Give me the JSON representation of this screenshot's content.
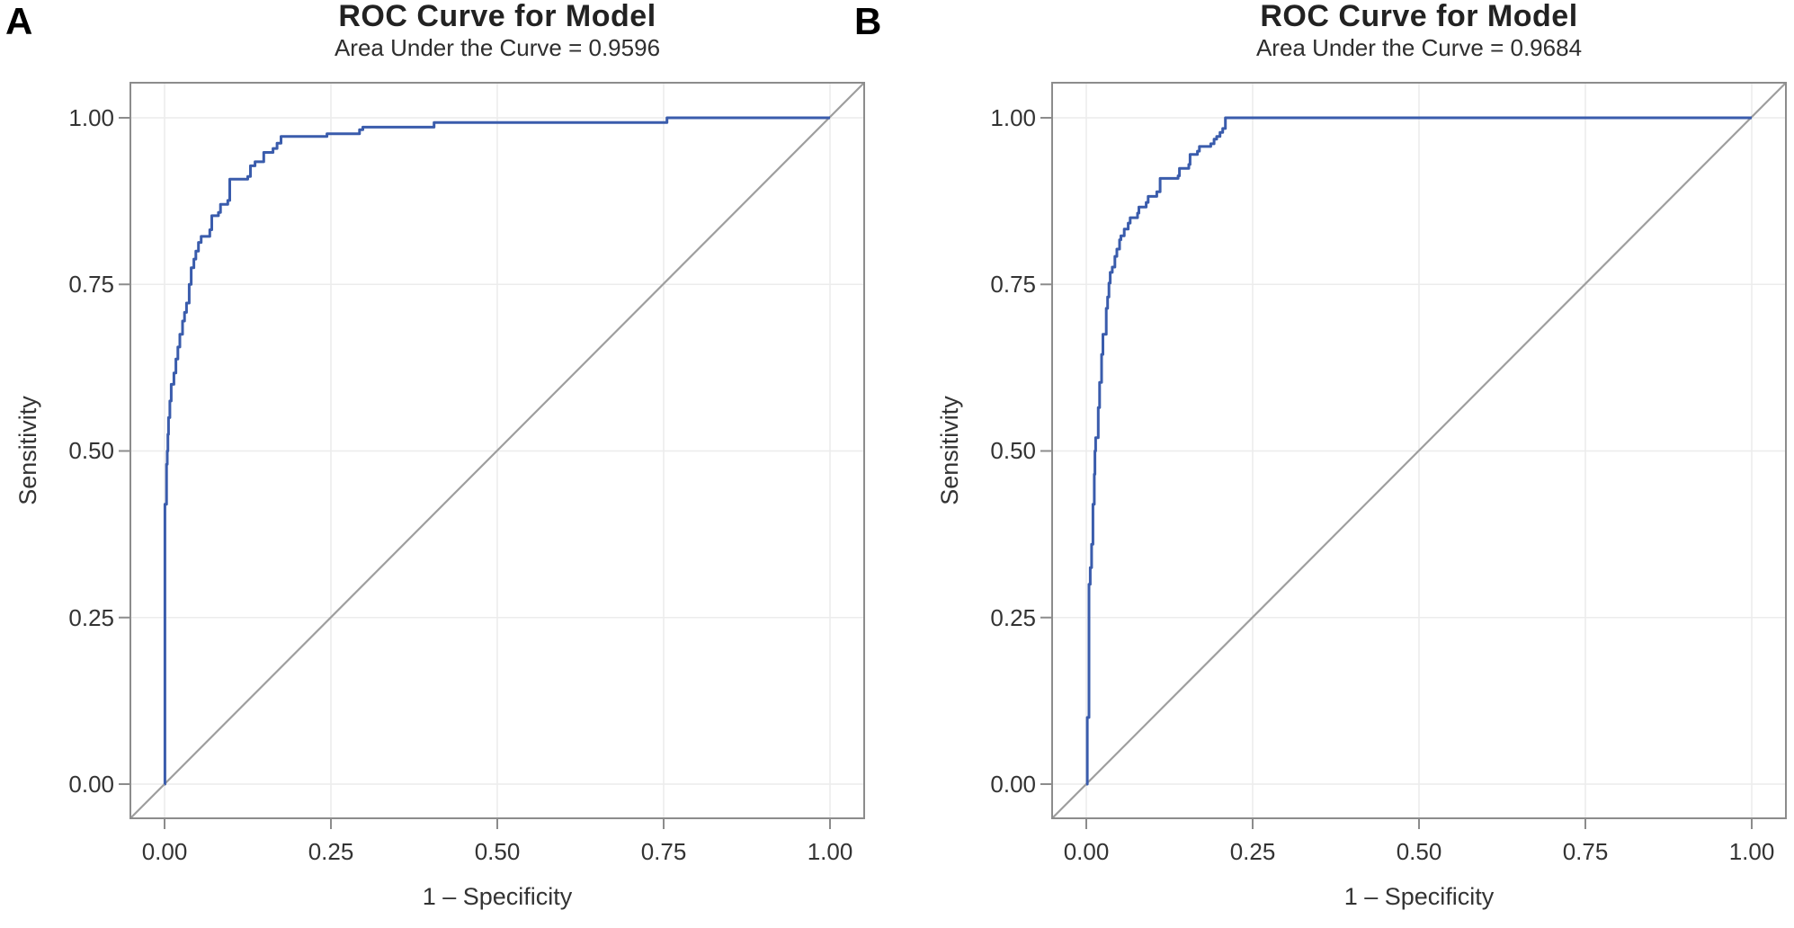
{
  "style": {
    "curve_color": "#3A5CAC",
    "diagonal_color": "#9E9E9E",
    "grid_color": "#ECECEC",
    "frame_color": "#8C8C8C",
    "tick_color": "#8C8C8C",
    "text_color": "#333333",
    "background": "#FFFFFF"
  },
  "chart_data": [
    {
      "type": "line",
      "panel_label": "A",
      "title": "ROC Curve for Model",
      "subtitle": "Area Under the Curve = 0.9596",
      "auc": 0.9596,
      "xlabel": "1 – Specificity",
      "ylabel": "Sensitivity",
      "xlim": [
        0.0,
        1.0
      ],
      "ylim": [
        0.0,
        1.0
      ],
      "grid": true,
      "legend": "none",
      "reference_line": "chance diagonal from (0,0) to (1,1)",
      "xticks": {
        "values": [
          0,
          0.25,
          0.5,
          0.75,
          1
        ],
        "labels": [
          "0.00",
          "0.25",
          "0.50",
          "0.75",
          "1.00"
        ]
      },
      "yticks": {
        "values": [
          0,
          0.25,
          0.5,
          0.75,
          1
        ],
        "labels": [
          "0.00",
          "0.25",
          "0.50",
          "0.75",
          "1.00"
        ]
      },
      "series": [
        {
          "name": "ROC curve",
          "points": [
            [
              0,
              0
            ],
            [
              0.0005,
              0
            ],
            [
              0.0005,
              0.42
            ],
            [
              0.003,
              0.445
            ],
            [
              0.003,
              0.48
            ],
            [
              0.004,
              0.5
            ],
            [
              0.005,
              0.525
            ],
            [
              0.006,
              0.55
            ],
            [
              0.008,
              0.575
            ],
            [
              0.01,
              0.6
            ],
            [
              0.014,
              0.617
            ],
            [
              0.017,
              0.638
            ],
            [
              0.02,
              0.656
            ],
            [
              0.023,
              0.675
            ],
            [
              0.027,
              0.695
            ],
            [
              0.03,
              0.708
            ],
            [
              0.033,
              0.722
            ],
            [
              0.037,
              0.75
            ],
            [
              0.04,
              0.775
            ],
            [
              0.044,
              0.788
            ],
            [
              0.047,
              0.8
            ],
            [
              0.051,
              0.813
            ],
            [
              0.055,
              0.822
            ],
            [
              0.068,
              0.832
            ],
            [
              0.071,
              0.853
            ],
            [
              0.081,
              0.858
            ],
            [
              0.084,
              0.87
            ],
            [
              0.095,
              0.876
            ],
            [
              0.098,
              0.908
            ],
            [
              0.125,
              0.912
            ],
            [
              0.129,
              0.928
            ],
            [
              0.136,
              0.934
            ],
            [
              0.149,
              0.948
            ],
            [
              0.163,
              0.954
            ],
            [
              0.169,
              0.962
            ],
            [
              0.175,
              0.972
            ],
            [
              0.244,
              0.976
            ],
            [
              0.293,
              0.982
            ],
            [
              0.298,
              0.986
            ],
            [
              0.405,
              0.993
            ],
            [
              0.755,
              1.0
            ],
            [
              1.0,
              1.0
            ]
          ]
        }
      ]
    },
    {
      "type": "line",
      "panel_label": "B",
      "title": "ROC Curve for Model",
      "subtitle": "Area Under the Curve = 0.9684",
      "auc": 0.9684,
      "xlabel": "1 – Specificity",
      "ylabel": "Sensitivity",
      "xlim": [
        0.0,
        1.0
      ],
      "ylim": [
        0.0,
        1.0
      ],
      "grid": true,
      "legend": "none",
      "reference_line": "chance diagonal from (0,0) to (1,1)",
      "xticks": {
        "values": [
          0,
          0.25,
          0.5,
          0.75,
          1
        ],
        "labels": [
          "0.00",
          "0.25",
          "0.50",
          "0.75",
          "1.00"
        ]
      },
      "yticks": {
        "values": [
          0,
          0.25,
          0.5,
          0.75,
          1
        ],
        "labels": [
          "0.00",
          "0.25",
          "0.50",
          "0.75",
          "1.00"
        ]
      },
      "series": [
        {
          "name": "ROC curve",
          "points": [
            [
              0,
              0
            ],
            [
              0.0015,
              0
            ],
            [
              0.0015,
              0.1
            ],
            [
              0.004,
              0.135
            ],
            [
              0.004,
              0.3
            ],
            [
              0.006,
              0.325
            ],
            [
              0.008,
              0.36
            ],
            [
              0.01,
              0.42
            ],
            [
              0.012,
              0.465
            ],
            [
              0.013,
              0.5
            ],
            [
              0.014,
              0.52
            ],
            [
              0.018,
              0.565
            ],
            [
              0.02,
              0.603
            ],
            [
              0.023,
              0.645
            ],
            [
              0.025,
              0.675
            ],
            [
              0.03,
              0.714
            ],
            [
              0.032,
              0.731
            ],
            [
              0.034,
              0.752
            ],
            [
              0.036,
              0.768
            ],
            [
              0.039,
              0.776
            ],
            [
              0.043,
              0.792
            ],
            [
              0.046,
              0.803
            ],
            [
              0.05,
              0.817
            ],
            [
              0.052,
              0.823
            ],
            [
              0.057,
              0.833
            ],
            [
              0.063,
              0.842
            ],
            [
              0.066,
              0.85
            ],
            [
              0.077,
              0.857
            ],
            [
              0.079,
              0.866
            ],
            [
              0.09,
              0.873
            ],
            [
              0.093,
              0.882
            ],
            [
              0.106,
              0.889
            ],
            [
              0.111,
              0.909
            ],
            [
              0.138,
              0.913
            ],
            [
              0.14,
              0.924
            ],
            [
              0.154,
              0.93
            ],
            [
              0.156,
              0.945
            ],
            [
              0.167,
              0.95
            ],
            [
              0.17,
              0.957
            ],
            [
              0.187,
              0.961
            ],
            [
              0.192,
              0.968
            ],
            [
              0.196,
              0.972
            ],
            [
              0.201,
              0.978
            ],
            [
              0.205,
              0.984
            ],
            [
              0.209,
              1.0
            ],
            [
              1.0,
              1.0
            ]
          ]
        }
      ]
    }
  ]
}
